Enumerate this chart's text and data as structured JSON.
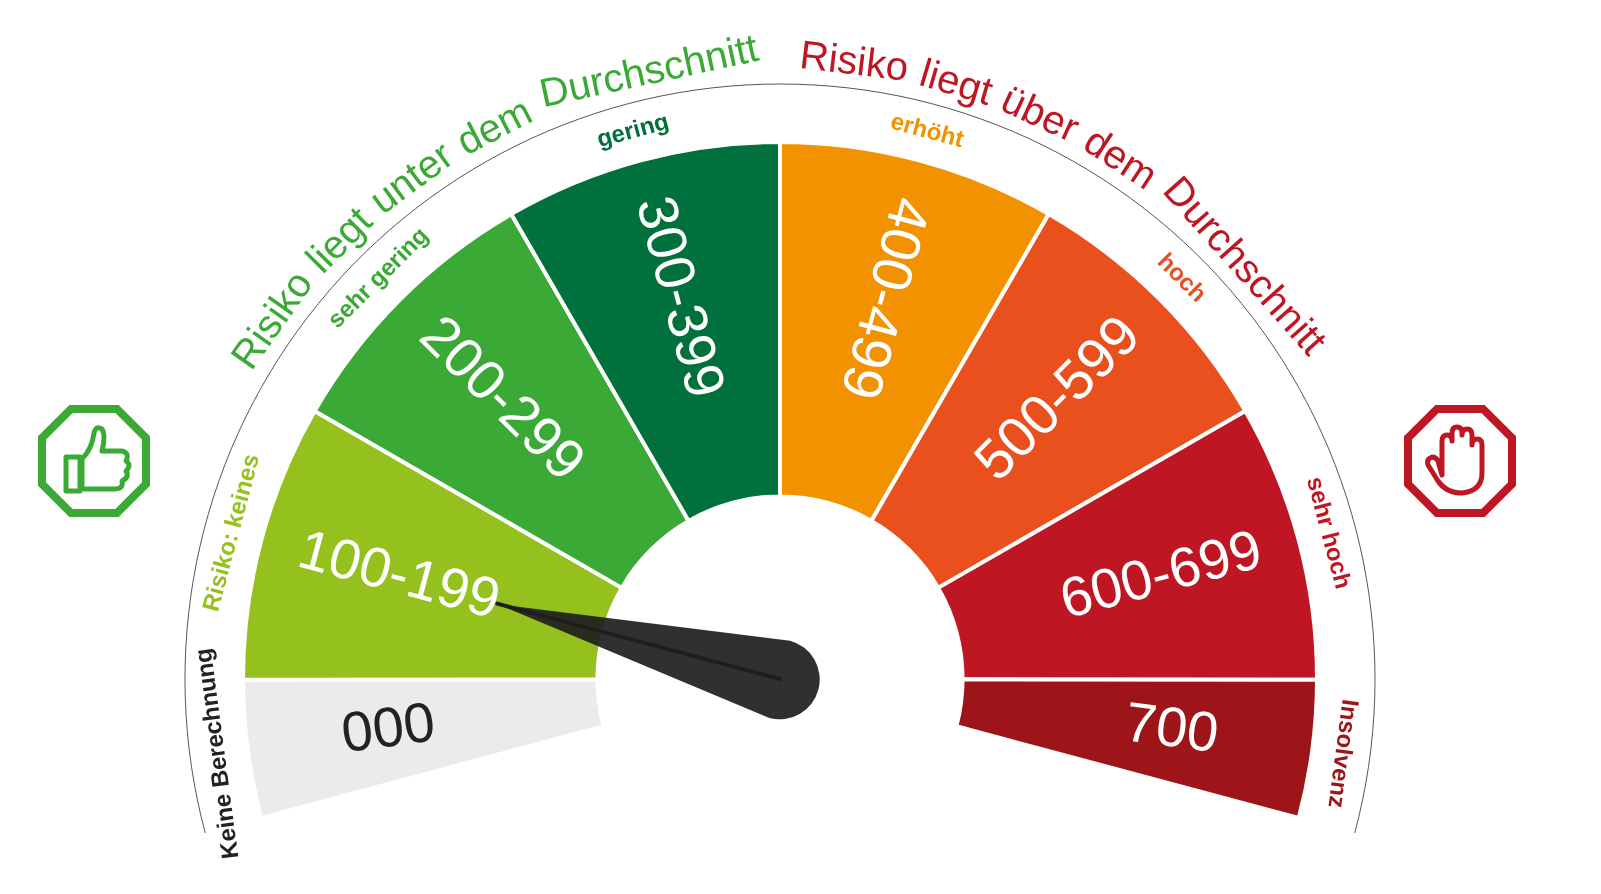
{
  "chart_data": {
    "type": "donut",
    "categories": [
      "000",
      "100-199",
      "200-299",
      "300-399",
      "400-499",
      "500-599",
      "600-699",
      "700"
    ],
    "values": [
      7.1,
      14.3,
      14.3,
      14.3,
      14.3,
      14.3,
      14.3,
      7.1
    ],
    "colors": [
      "#ebebeb",
      "#95c11f",
      "#3aa935",
      "#00703c",
      "#f39200",
      "#e9501e",
      "#be1622",
      "#9d1519"
    ],
    "needle": "100-199",
    "legend": false,
    "annotations": [
      "Risiko liegt unter dem Durchschnitt",
      "Risiko liegt über dem Durchschnitt",
      "Keine Berechnung",
      "Risiko: keines",
      "sehr gering",
      "gering",
      "erhöht",
      "hoch",
      "sehr hoch",
      "Insolvenz"
    ]
  }
}
